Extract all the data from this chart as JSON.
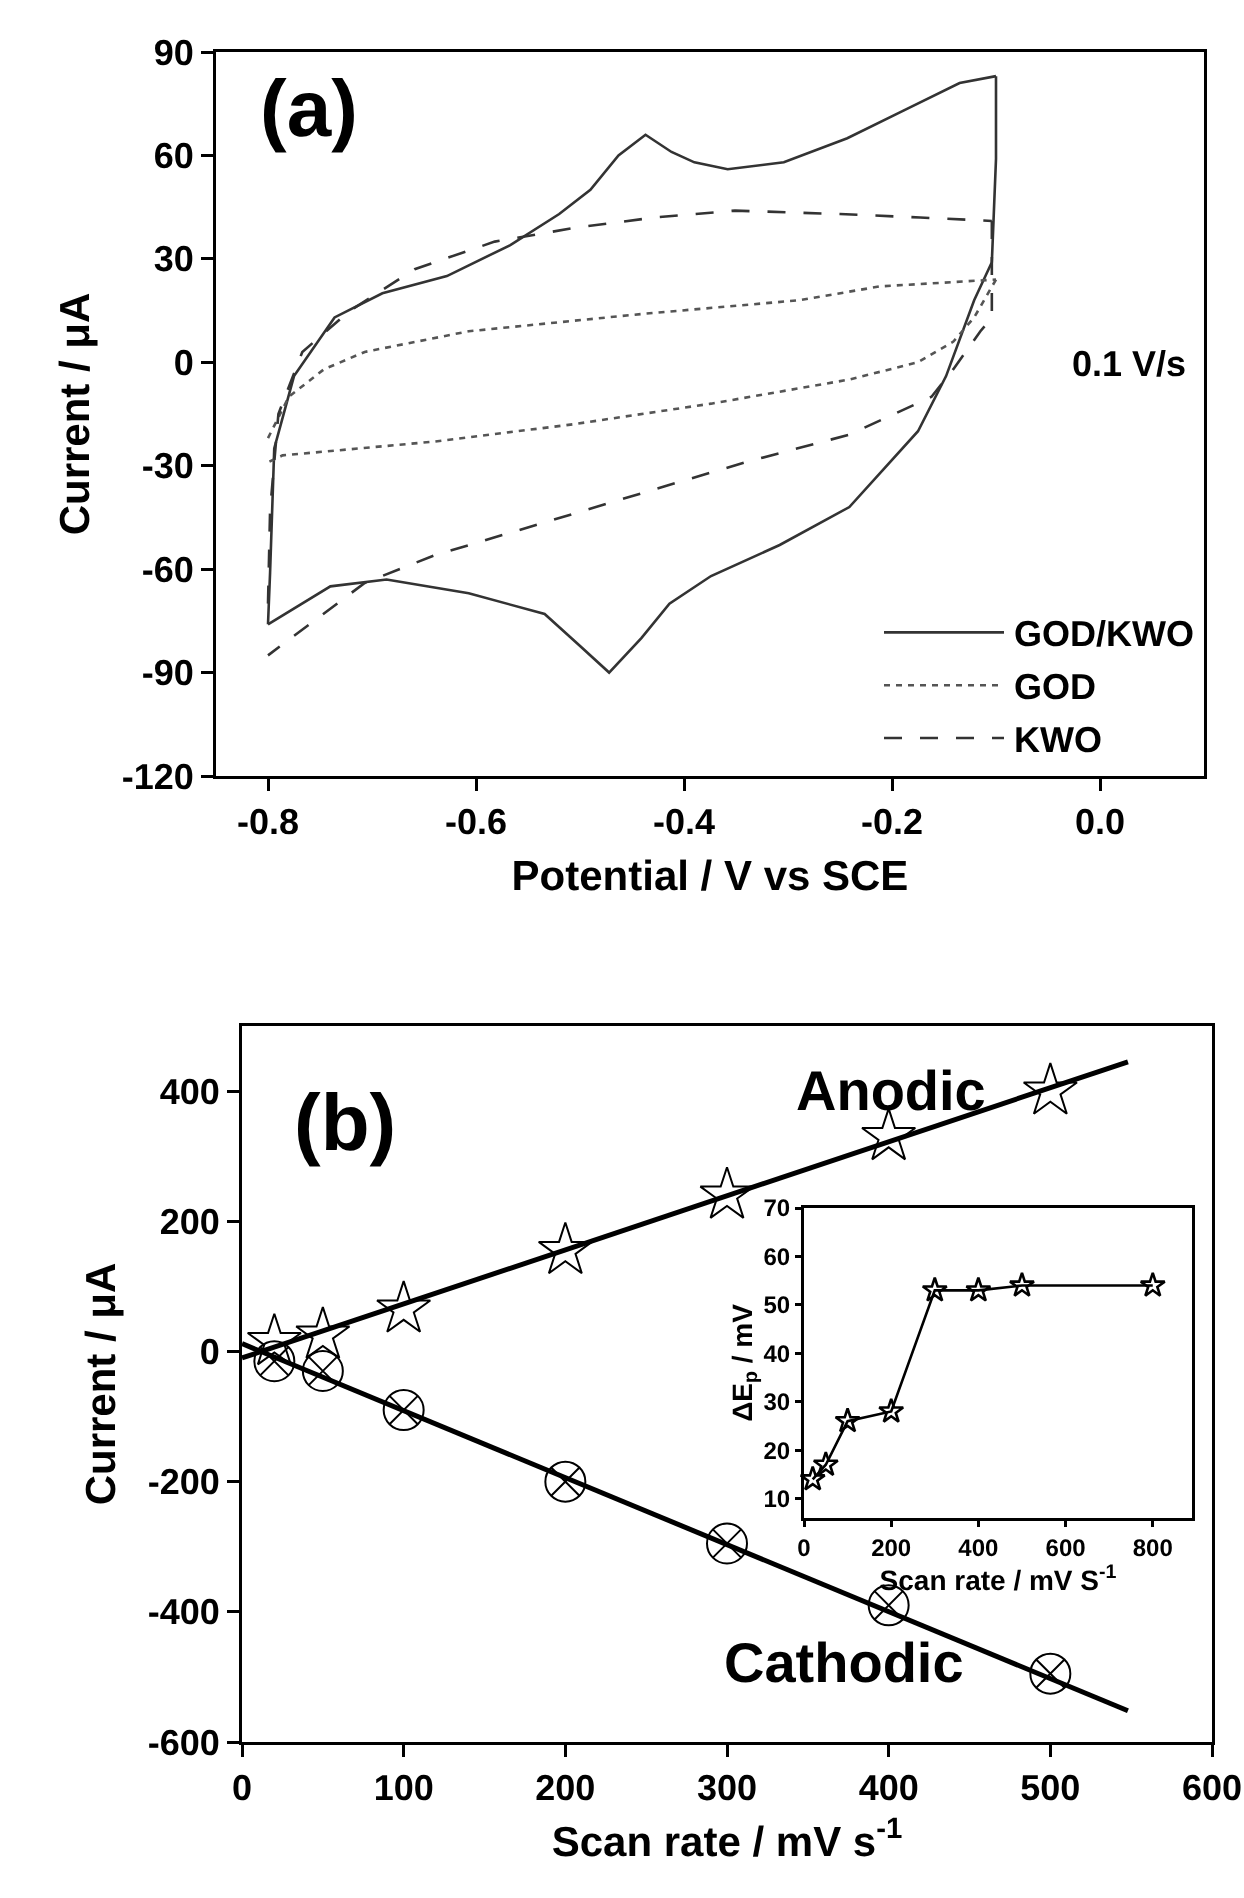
{
  "chart_data": [
    {
      "type": "line",
      "xlabel": "Potential / V vs SCE",
      "ylabel": "Current / μA",
      "xlim": [
        -0.85,
        0.1
      ],
      "xticks": [
        -0.8,
        -0.6,
        -0.4,
        -0.2,
        {
          "value": 0,
          "label": "0.0"
        }
      ],
      "ylim": [
        -120,
        90
      ],
      "yticks": [
        -120,
        -90,
        -60,
        -30,
        0,
        30,
        60,
        90
      ],
      "grid": false,
      "legend": "bottom right",
      "annotations": [
        "(a)",
        "0.1 V/s"
      ],
      "series": [
        {
          "name": "GOD/KWO",
          "color": "#333333",
          "line_style": "solid",
          "x": [
            -0.8,
            -0.798,
            -0.794,
            -0.775,
            -0.736,
            -0.69,
            -0.628,
            -0.567,
            -0.52,
            -0.49,
            -0.463,
            -0.437,
            -0.412,
            -0.39,
            -0.358,
            -0.304,
            -0.243,
            -0.189,
            -0.135,
            -0.1
          ],
          "values": [
            -76,
            -61,
            -25,
            -4,
            13,
            20,
            25,
            34,
            43,
            50,
            60,
            66,
            61,
            58,
            56,
            58,
            65,
            73,
            81,
            83
          ]
        },
        {
          "color": "#333333",
          "line_style": "solid",
          "x": [
            -0.1,
            -0.1,
            -0.104,
            -0.121,
            -0.148,
            -0.175,
            -0.241,
            -0.308,
            -0.374,
            -0.414,
            -0.441,
            -0.472,
            -0.501,
            -0.534,
            -0.607,
            -0.686,
            -0.74,
            -0.8
          ],
          "values": [
            83,
            59,
            29,
            18,
            -4,
            -20,
            -42,
            -53,
            -62,
            -70,
            -80,
            -90,
            -82,
            -73,
            -67,
            -63,
            -65,
            -76
          ]
        },
        {
          "name": "GOD",
          "color": "#555555",
          "line_style": "dotted",
          "x": [
            -0.8,
            -0.78,
            -0.746,
            -0.707,
            -0.607,
            -0.441,
            -0.289,
            -0.212,
            -0.1
          ],
          "values": [
            -22,
            -10,
            -2,
            3,
            9,
            14,
            18,
            22,
            24
          ]
        },
        {
          "color": "#555555",
          "line_style": "dotted",
          "x": [
            -0.1,
            -0.121,
            -0.141,
            -0.175,
            -0.241,
            -0.374,
            -0.507,
            -0.64,
            -0.786,
            -0.8
          ],
          "values": [
            24,
            13,
            6,
            0,
            -5,
            -12,
            -18,
            -23,
            -27,
            -29
          ]
        },
        {
          "name": "KWO",
          "color": "#333333",
          "line_style": "dashed",
          "x": [
            -0.8,
            -0.798,
            -0.79,
            -0.767,
            -0.721,
            -0.659,
            -0.582,
            -0.505,
            -0.428,
            -0.351,
            -0.25,
            -0.173,
            -0.104
          ],
          "values": [
            -70,
            -43,
            -15,
            3,
            15,
            27,
            35,
            39,
            42,
            44,
            43,
            42,
            41
          ]
        },
        {
          "color": "#333333",
          "line_style": "dashed",
          "x": [
            -0.104,
            -0.104,
            -0.115,
            -0.141,
            -0.162,
            -0.241,
            -0.341,
            -0.441,
            -0.54,
            -0.64,
            -0.707,
            -0.8
          ],
          "values": [
            41,
            13,
            9,
            -2,
            -10,
            -21,
            -29,
            -38,
            -47,
            -56,
            -64,
            -85
          ]
        }
      ]
    },
    {
      "type": "scatter",
      "xlabel": "Scan rate / mV s$^{-1}$",
      "ylabel": "Current / μA",
      "xlim": [
        0,
        600
      ],
      "xticks": [
        0,
        100,
        200,
        300,
        400,
        500,
        600
      ],
      "ylim": [
        -600,
        500
      ],
      "yticks": [
        -600,
        -400,
        -200,
        0,
        200,
        400
      ],
      "grid": false,
      "legend": false,
      "annotations": [
        "(b)",
        "Anodic",
        "Cathodic"
      ],
      "series": [
        {
          "type": "scatter",
          "color": "#000000",
          "marker": "star",
          "x": [
            20,
            50,
            100,
            200,
            300,
            400,
            500
          ],
          "values": [
            15,
            25,
            65,
            155,
            240,
            330,
            400
          ]
        },
        {
          "type": "scatter",
          "color": "#000000",
          "marker": "cross",
          "x": [
            20,
            50,
            100,
            200,
            300,
            400,
            500
          ],
          "values": [
            -15,
            -30,
            -90,
            -200,
            -295,
            -390,
            -495
          ]
        },
        {
          "type": "line",
          "color": "#000000",
          "marker": "none",
          "line_style": "solid",
          "x": [
            0,
            548
          ],
          "values": [
            -10,
            445
          ]
        },
        {
          "type": "line",
          "color": "#000000",
          "marker": "none",
          "line_style": "solid",
          "x": [
            0,
            548
          ],
          "values": [
            12,
            -552
          ]
        }
      ]
    },
    {
      "type": "line",
      "xlabel": "Scan rate / mV S$^{-1}$",
      "ylabel": "ΔE$_{p}$ / mV",
      "xlim": [
        0,
        890
      ],
      "xticks": [
        0,
        200,
        400,
        600,
        800
      ],
      "ylim": [
        6,
        70
      ],
      "yticks": [
        10,
        20,
        30,
        40,
        50,
        60,
        70
      ],
      "grid": false,
      "legend": false,
      "marker": "star",
      "line_style": "solid",
      "series": [
        {
          "color": "#000000",
          "x": [
            20,
            50,
            100,
            200,
            300,
            400,
            500,
            800
          ],
          "values": [
            14,
            17,
            26,
            28,
            53,
            53,
            54,
            54
          ]
        }
      ]
    }
  ]
}
